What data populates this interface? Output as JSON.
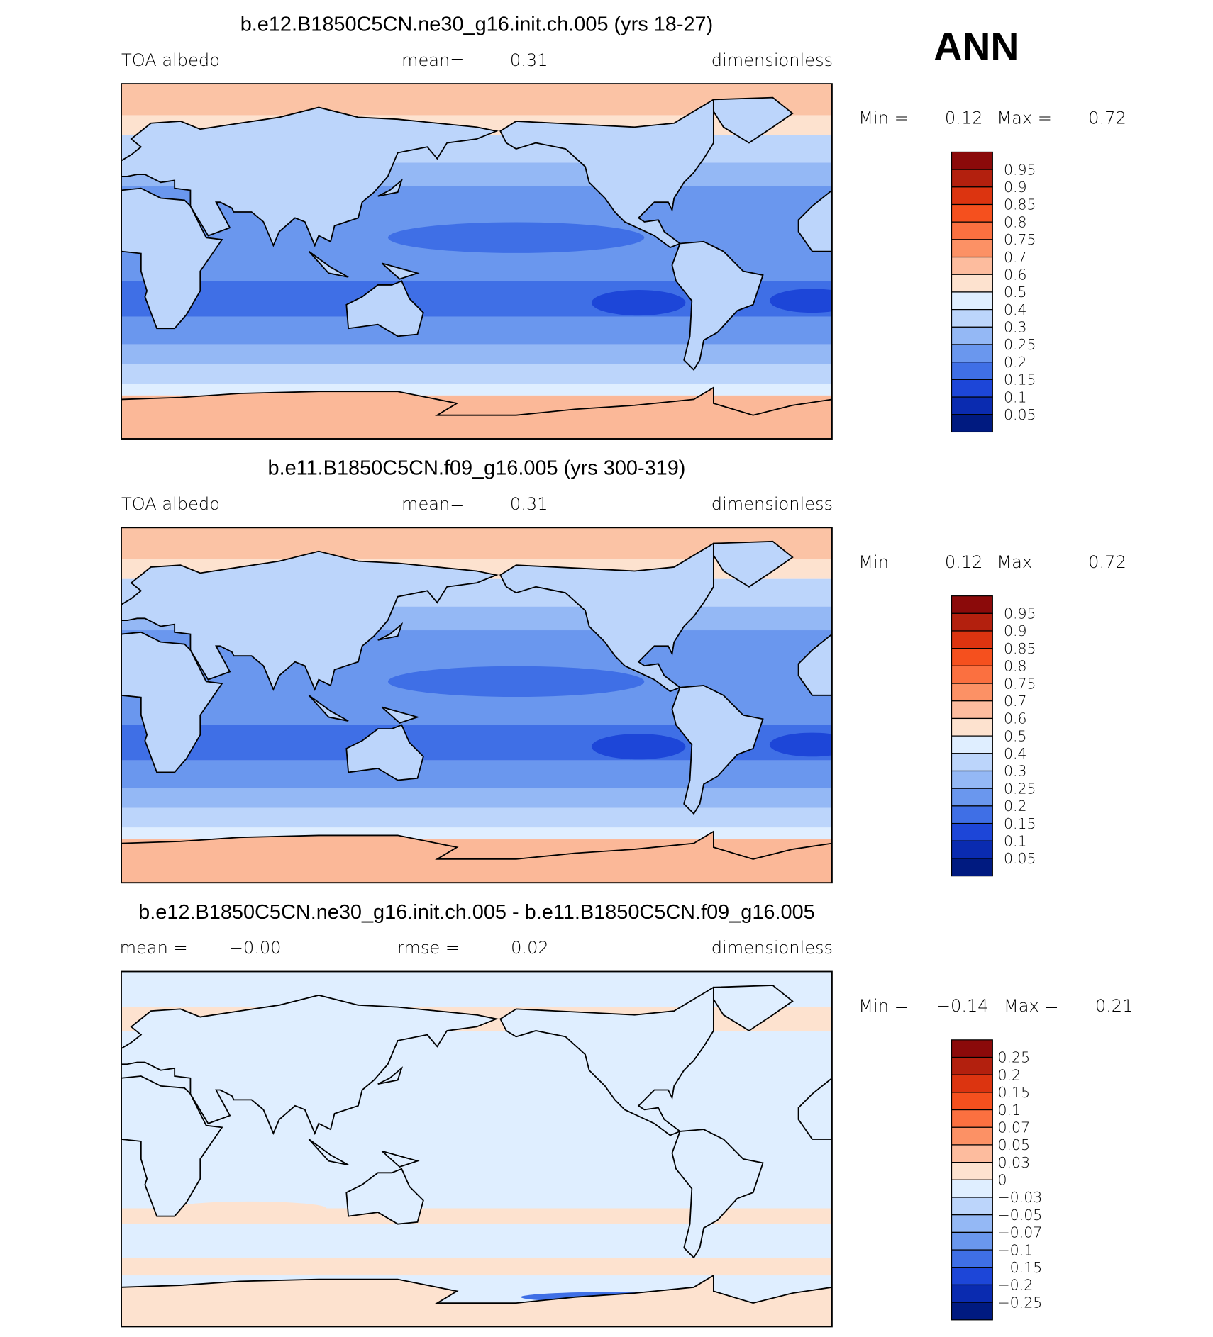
{
  "header": "ANN",
  "panels": [
    {
      "title": "b.e12.B1850C5CN.ne30_g16.init.ch.005 (yrs 18-27)",
      "subtitle": [
        "TOA albedo",
        "mean=",
        "0.31",
        "dimensionless"
      ],
      "stats": [
        "Min =",
        "0.12",
        "Max =",
        "0.72"
      ],
      "colorbar": {
        "labels": [
          "0.95",
          "0.9",
          "0.85",
          "0.8",
          "0.75",
          "0.7",
          "0.6",
          "0.5",
          "0.4",
          "0.3",
          "0.25",
          "0.2",
          "0.15",
          "0.1",
          "0.05"
        ],
        "colors": [
          "#8b0a0a",
          "#b3200e",
          "#dc3410",
          "#f5501e",
          "#fb7040",
          "#fc9165",
          "#fdbc9e",
          "#fde2cf",
          "#dfeeff",
          "#bcd5fb",
          "#94b8f5",
          "#6a97ee",
          "#3f6fe6",
          "#1d46d8",
          "#0a2bb0",
          "#001a80"
        ]
      }
    },
    {
      "title": "b.e11.B1850C5CN.f09_g16.005 (yrs 300-319)",
      "subtitle": [
        "TOA albedo",
        "mean=",
        "0.31",
        "dimensionless"
      ],
      "stats": [
        "Min =",
        "0.12",
        "Max =",
        "0.72"
      ],
      "colorbar": {
        "labels": [
          "0.95",
          "0.9",
          "0.85",
          "0.8",
          "0.75",
          "0.7",
          "0.6",
          "0.5",
          "0.4",
          "0.3",
          "0.25",
          "0.2",
          "0.15",
          "0.1",
          "0.05"
        ],
        "colors": [
          "#8b0a0a",
          "#b3200e",
          "#dc3410",
          "#f5501e",
          "#fb7040",
          "#fc9165",
          "#fdbc9e",
          "#fde2cf",
          "#dfeeff",
          "#bcd5fb",
          "#94b8f5",
          "#6a97ee",
          "#3f6fe6",
          "#1d46d8",
          "#0a2bb0",
          "#001a80"
        ]
      }
    },
    {
      "title": "b.e12.B1850C5CN.ne30_g16.init.ch.005 - b.e11.B1850C5CN.f09_g16.005",
      "subtitle": [
        "mean =",
        "−0.00",
        "rmse =",
        "0.02",
        "dimensionless"
      ],
      "stats": [
        "Min =",
        "−0.14",
        "Max =",
        "0.21"
      ],
      "colorbar": {
        "labels": [
          "0.25",
          "0.2",
          "0.15",
          "0.1",
          "0.07",
          "0.05",
          "0.03",
          "0",
          "−0.03",
          "−0.05",
          "−0.07",
          "−0.1",
          "−0.15",
          "−0.2",
          "−0.25"
        ],
        "colors": [
          "#8b0a0a",
          "#b3200e",
          "#dc3410",
          "#f5501e",
          "#fb7040",
          "#fc9165",
          "#fdbc9e",
          "#fde2cf",
          "#dfeeff",
          "#bcd5fb",
          "#94b8f5",
          "#6a97ee",
          "#3f6fe6",
          "#1d46d8",
          "#0a2bb0",
          "#001a80"
        ]
      }
    }
  ]
}
